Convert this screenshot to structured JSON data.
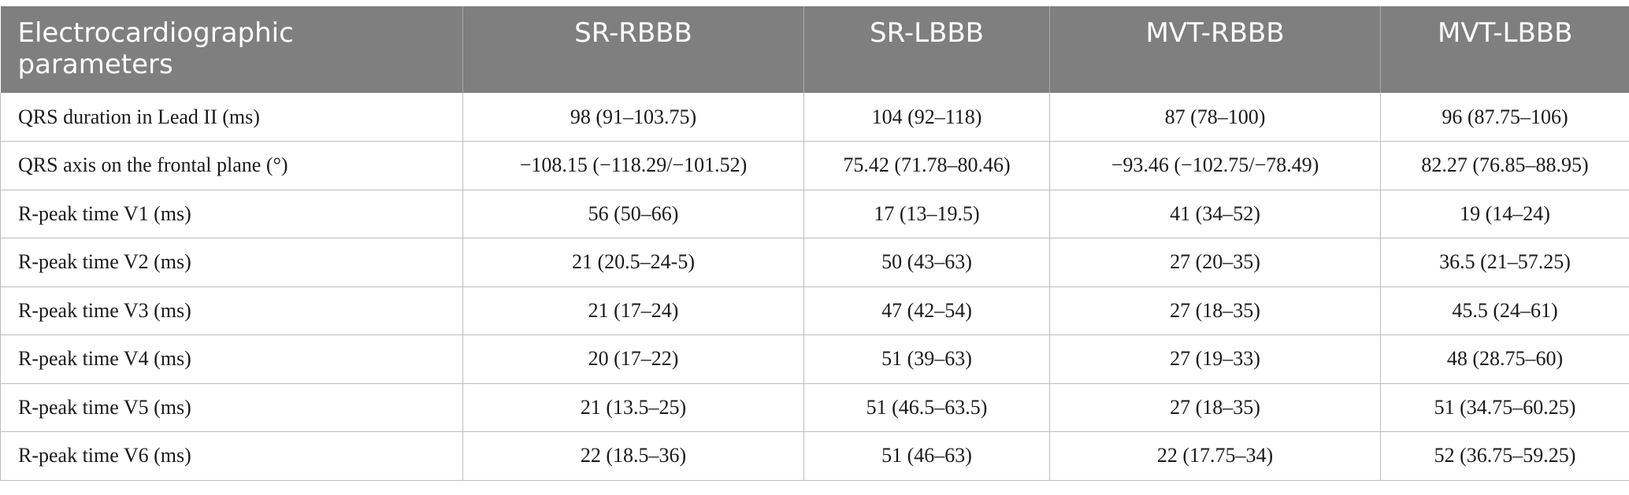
{
  "table": {
    "columns": [
      "Electrocardiographic parameters",
      "SR-RBBB",
      "SR-LBBB",
      "MVT-RBBB",
      "MVT-LBBB"
    ],
    "rows": [
      [
        "QRS duration in Lead II (ms)",
        "98 (91–103.75)",
        "104 (92–118)",
        "87 (78–100)",
        "96 (87.75–106)"
      ],
      [
        "QRS axis on the frontal plane (°)",
        "−108.15 (−118.29/−101.52)",
        "75.42 (71.78–80.46)",
        "−93.46 (−102.75/−78.49)",
        "82.27 (76.85–88.95)"
      ],
      [
        "R-peak time V1 (ms)",
        "56 (50–66)",
        "17 (13–19.5)",
        "41 (34–52)",
        "19 (14–24)"
      ],
      [
        "R-peak time V2 (ms)",
        "21 (20.5–24-5)",
        "50 (43–63)",
        "27 (20–35)",
        "36.5 (21–57.25)"
      ],
      [
        "R-peak time V3 (ms)",
        "21 (17–24)",
        "47 (42–54)",
        "27 (18–35)",
        "45.5 (24–61)"
      ],
      [
        "R-peak time V4 (ms)",
        "20 (17–22)",
        "51 (39–63)",
        "27 (19–33)",
        "48 (28.75–60)"
      ],
      [
        "R-peak time V5 (ms)",
        "21 (13.5–25)",
        "51 (46.5–63.5)",
        "27 (18–35)",
        "51 (34.75–60.25)"
      ],
      [
        "R-peak time V6 (ms)",
        "22 (18.5–36)",
        "51 (46–63)",
        "22 (17.75–34)",
        "52 (36.75–59.25)"
      ]
    ]
  },
  "colors": {
    "header_bg": "#7f7f7f",
    "header_text": "#ffffff",
    "grid_line": "#bdbdbd"
  }
}
